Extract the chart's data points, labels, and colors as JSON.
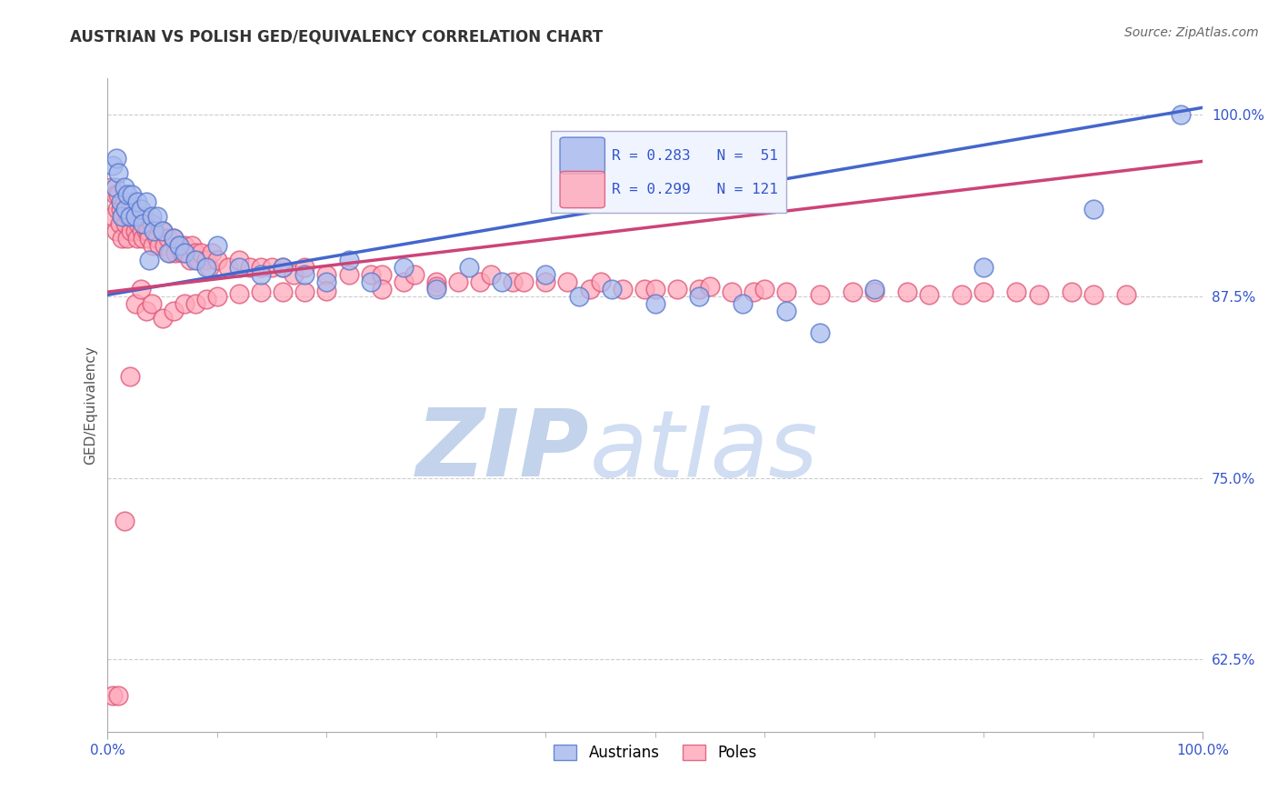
{
  "title": "AUSTRIAN VS POLISH GED/EQUIVALENCY CORRELATION CHART",
  "source": "Source: ZipAtlas.com",
  "ylabel": "GED/Equivalency",
  "background_color": "#ffffff",
  "title_color": "#333333",
  "title_fontsize": 12,
  "source_fontsize": 10,
  "axis_label_color": "#555555",
  "tick_label_color": "#3355cc",
  "grid_color": "#cccccc",
  "watermark_zip_color": "#c8d8f0",
  "watermark_atlas_color": "#c8d8f0",
  "blue_fill": "#aabbee",
  "blue_edge": "#5577cc",
  "pink_fill": "#ffaabb",
  "pink_edge": "#dd5577",
  "blue_line_color": "#4466cc",
  "pink_line_color": "#cc4477",
  "R_austrians": 0.283,
  "N_austrians": 51,
  "R_poles": 0.299,
  "N_poles": 121,
  "xlim": [
    0.0,
    1.0
  ],
  "ylim": [
    0.575,
    1.025
  ],
  "yticks": [
    0.625,
    0.75,
    0.875,
    1.0
  ],
  "ytick_labels": [
    "62.5%",
    "75.0%",
    "87.5%",
    "100.0%"
  ],
  "blue_trend_x": [
    0.0,
    1.0
  ],
  "blue_trend_y": [
    0.876,
    1.005
  ],
  "pink_trend_x": [
    0.0,
    1.0
  ],
  "pink_trend_y": [
    0.878,
    0.968
  ],
  "austrians_x": [
    0.005,
    0.007,
    0.008,
    0.01,
    0.012,
    0.013,
    0.015,
    0.016,
    0.018,
    0.02,
    0.022,
    0.025,
    0.027,
    0.03,
    0.032,
    0.035,
    0.038,
    0.04,
    0.042,
    0.045,
    0.05,
    0.055,
    0.06,
    0.065,
    0.07,
    0.08,
    0.09,
    0.1,
    0.12,
    0.14,
    0.16,
    0.18,
    0.2,
    0.22,
    0.24,
    0.27,
    0.3,
    0.33,
    0.36,
    0.4,
    0.43,
    0.46,
    0.5,
    0.54,
    0.58,
    0.62,
    0.65,
    0.7,
    0.8,
    0.9,
    0.98
  ],
  "austrians_y": [
    0.965,
    0.95,
    0.97,
    0.96,
    0.94,
    0.93,
    0.95,
    0.935,
    0.945,
    0.93,
    0.945,
    0.93,
    0.94,
    0.935,
    0.925,
    0.94,
    0.9,
    0.93,
    0.92,
    0.93,
    0.92,
    0.905,
    0.915,
    0.91,
    0.905,
    0.9,
    0.895,
    0.91,
    0.895,
    0.89,
    0.895,
    0.89,
    0.885,
    0.9,
    0.885,
    0.895,
    0.88,
    0.895,
    0.885,
    0.89,
    0.875,
    0.88,
    0.87,
    0.875,
    0.87,
    0.865,
    0.85,
    0.88,
    0.895,
    0.935,
    1.0
  ],
  "poles_x": [
    0.003,
    0.005,
    0.007,
    0.008,
    0.009,
    0.01,
    0.011,
    0.012,
    0.013,
    0.014,
    0.015,
    0.016,
    0.017,
    0.018,
    0.019,
    0.02,
    0.021,
    0.022,
    0.023,
    0.025,
    0.026,
    0.027,
    0.028,
    0.03,
    0.031,
    0.032,
    0.033,
    0.035,
    0.037,
    0.038,
    0.04,
    0.041,
    0.043,
    0.045,
    0.047,
    0.05,
    0.052,
    0.055,
    0.057,
    0.06,
    0.062,
    0.065,
    0.068,
    0.07,
    0.072,
    0.075,
    0.077,
    0.08,
    0.083,
    0.085,
    0.09,
    0.093,
    0.095,
    0.1,
    0.11,
    0.12,
    0.13,
    0.14,
    0.15,
    0.16,
    0.17,
    0.18,
    0.2,
    0.22,
    0.24,
    0.25,
    0.27,
    0.28,
    0.3,
    0.32,
    0.34,
    0.35,
    0.37,
    0.38,
    0.4,
    0.42,
    0.44,
    0.45,
    0.47,
    0.49,
    0.5,
    0.52,
    0.54,
    0.55,
    0.57,
    0.59,
    0.6,
    0.62,
    0.65,
    0.68,
    0.7,
    0.73,
    0.75,
    0.78,
    0.8,
    0.83,
    0.85,
    0.88,
    0.9,
    0.93,
    0.005,
    0.01,
    0.015,
    0.02,
    0.025,
    0.03,
    0.035,
    0.04,
    0.05,
    0.06,
    0.07,
    0.08,
    0.09,
    0.1,
    0.12,
    0.14,
    0.16,
    0.18,
    0.2,
    0.25,
    0.3
  ],
  "poles_y": [
    0.95,
    0.93,
    0.945,
    0.92,
    0.935,
    0.945,
    0.925,
    0.935,
    0.915,
    0.93,
    0.94,
    0.925,
    0.935,
    0.915,
    0.93,
    0.94,
    0.92,
    0.93,
    0.935,
    0.92,
    0.93,
    0.915,
    0.925,
    0.93,
    0.92,
    0.915,
    0.93,
    0.92,
    0.92,
    0.915,
    0.925,
    0.91,
    0.92,
    0.915,
    0.91,
    0.92,
    0.91,
    0.915,
    0.905,
    0.915,
    0.905,
    0.91,
    0.905,
    0.91,
    0.905,
    0.9,
    0.91,
    0.905,
    0.9,
    0.905,
    0.9,
    0.895,
    0.905,
    0.9,
    0.895,
    0.9,
    0.895,
    0.895,
    0.895,
    0.895,
    0.89,
    0.895,
    0.89,
    0.89,
    0.89,
    0.89,
    0.885,
    0.89,
    0.885,
    0.885,
    0.885,
    0.89,
    0.885,
    0.885,
    0.885,
    0.885,
    0.88,
    0.885,
    0.88,
    0.88,
    0.88,
    0.88,
    0.88,
    0.882,
    0.878,
    0.878,
    0.88,
    0.878,
    0.876,
    0.878,
    0.878,
    0.878,
    0.876,
    0.876,
    0.878,
    0.878,
    0.876,
    0.878,
    0.876,
    0.876,
    0.6,
    0.6,
    0.72,
    0.82,
    0.87,
    0.88,
    0.865,
    0.87,
    0.86,
    0.865,
    0.87,
    0.87,
    0.873,
    0.875,
    0.877,
    0.878,
    0.878,
    0.878,
    0.879,
    0.88,
    0.882
  ]
}
